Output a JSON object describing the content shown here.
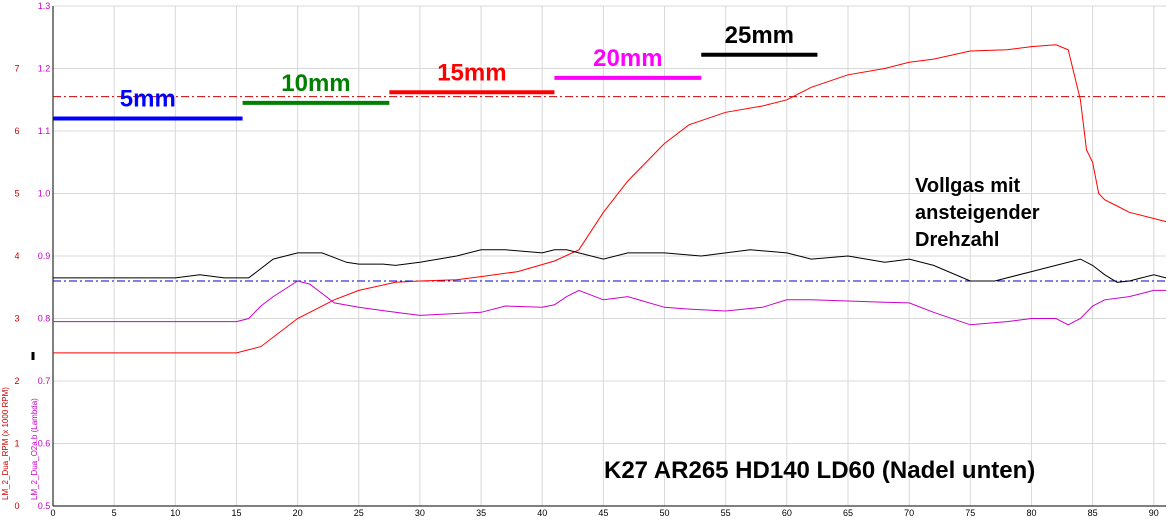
{
  "chart_data": {
    "type": "line",
    "caption": "K27 AR265 HD140 LD60 (Nadel unten)",
    "note": [
      "Vollgas mit",
      "ansteigender",
      "Drehzahl"
    ],
    "xlabel": "",
    "xlim": [
      0,
      91
    ],
    "x_ticks": [
      0,
      5,
      10,
      15,
      20,
      25,
      30,
      35,
      40,
      45,
      50,
      55,
      60,
      65,
      70,
      75,
      80,
      85,
      90
    ],
    "y_axes": [
      {
        "name": "LM_2_Dua_RPM (x 1000 RPM)",
        "color": "#cc0000",
        "range": [
          0,
          8
        ],
        "ticks": [
          0,
          1,
          2,
          3,
          4,
          5,
          6,
          7
        ]
      },
      {
        "name": "LM_2_Dua_O2a.b (Lambda)",
        "color": "#cc00cc",
        "range": [
          0.5,
          1.3
        ],
        "ticks": [
          0.5,
          0.6,
          0.7,
          0.8,
          0.9,
          1.0,
          1.1,
          1.2,
          1.3
        ]
      }
    ],
    "grid": true,
    "reference_lines": [
      {
        "axis": "rpm",
        "value": 6.55,
        "color": "#cc0000",
        "style": "dashdot"
      },
      {
        "axis": "lambda",
        "value": 0.86,
        "color": "#0000cc",
        "style": "dashdot"
      }
    ],
    "needle_segments": [
      {
        "label": "5mm",
        "x_start": 0,
        "x_end": 15.5,
        "color": "#0000ff",
        "value": 1.12
      },
      {
        "label": "10mm",
        "x_start": 15.5,
        "x_end": 27.5,
        "color": "#008000",
        "value": 1.145
      },
      {
        "label": "15mm",
        "x_start": 27.5,
        "x_end": 41,
        "color": "#ff0000",
        "value": 1.162
      },
      {
        "label": "20mm",
        "x_start": 41,
        "x_end": 53,
        "color": "#ff00ff",
        "value": 1.185
      },
      {
        "label": "25mm",
        "x_start": 53,
        "x_end": 62.5,
        "color": "#000000",
        "value": 1.222
      }
    ],
    "series": [
      {
        "axis": "rpm",
        "color": "#ff0000",
        "x": [
          0,
          5,
          10,
          15,
          17,
          20,
          23,
          25,
          28,
          30,
          33,
          35,
          38,
          41,
          43,
          45,
          47,
          50,
          52,
          55,
          58,
          60,
          62,
          65,
          68,
          70,
          72,
          75,
          78,
          80,
          82,
          83,
          84,
          84.5,
          85,
          85.5,
          86,
          87,
          88,
          90,
          91
        ],
        "y": [
          2.45,
          2.45,
          2.45,
          2.45,
          2.55,
          3.0,
          3.3,
          3.45,
          3.58,
          3.6,
          3.62,
          3.67,
          3.75,
          3.92,
          4.1,
          4.7,
          5.2,
          5.8,
          6.1,
          6.3,
          6.4,
          6.5,
          6.7,
          6.9,
          7.0,
          7.1,
          7.15,
          7.28,
          7.3,
          7.35,
          7.38,
          7.3,
          6.5,
          5.7,
          5.5,
          5.0,
          4.9,
          4.8,
          4.7,
          4.6,
          4.55
        ]
      },
      {
        "axis": "lambda",
        "color": "#cc00cc",
        "x": [
          0,
          5,
          10,
          15,
          16,
          17,
          18,
          20,
          21,
          22,
          23,
          25,
          28,
          30,
          33,
          35,
          37,
          40,
          41,
          42,
          43,
          45,
          47,
          50,
          52,
          55,
          58,
          60,
          62,
          65,
          68,
          70,
          72,
          75,
          78,
          80,
          82,
          83,
          84,
          85,
          86,
          88,
          90,
          91
        ],
        "y": [
          0.795,
          0.795,
          0.795,
          0.795,
          0.8,
          0.82,
          0.835,
          0.86,
          0.855,
          0.84,
          0.825,
          0.818,
          0.81,
          0.805,
          0.808,
          0.81,
          0.82,
          0.818,
          0.822,
          0.835,
          0.845,
          0.83,
          0.835,
          0.818,
          0.815,
          0.812,
          0.818,
          0.83,
          0.83,
          0.828,
          0.826,
          0.825,
          0.81,
          0.79,
          0.795,
          0.8,
          0.8,
          0.79,
          0.8,
          0.82,
          0.83,
          0.835,
          0.845,
          0.845
        ]
      },
      {
        "axis": "lambda",
        "color": "#000000",
        "x": [
          0,
          5,
          10,
          12,
          14,
          16,
          18,
          20,
          22,
          24,
          25,
          27,
          28,
          30,
          33,
          35,
          37,
          40,
          41,
          42,
          43,
          45,
          47,
          50,
          53,
          55,
          57,
          60,
          62,
          65,
          68,
          70,
          72,
          75,
          77,
          80,
          82,
          84,
          85,
          86,
          87,
          88,
          89,
          90,
          91
        ],
        "y": [
          0.865,
          0.865,
          0.865,
          0.87,
          0.865,
          0.865,
          0.895,
          0.905,
          0.905,
          0.89,
          0.887,
          0.887,
          0.885,
          0.89,
          0.9,
          0.91,
          0.91,
          0.905,
          0.91,
          0.91,
          0.905,
          0.895,
          0.905,
          0.905,
          0.9,
          0.905,
          0.91,
          0.905,
          0.895,
          0.9,
          0.89,
          0.895,
          0.885,
          0.86,
          0.86,
          0.875,
          0.885,
          0.895,
          0.885,
          0.87,
          0.858,
          0.86,
          0.865,
          0.87,
          0.865
        ]
      }
    ]
  }
}
